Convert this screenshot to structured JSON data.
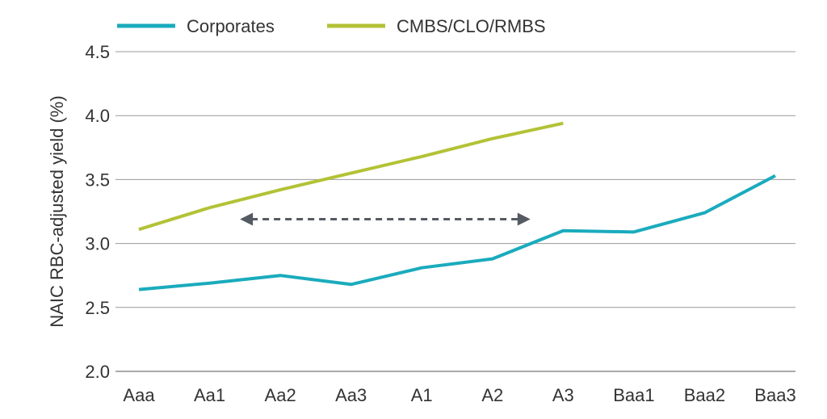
{
  "chart_data": {
    "type": "line",
    "title": "",
    "xlabel": "",
    "ylabel": "NAIC RBC-adjusted yield (%)",
    "ylim": [
      2.0,
      4.5
    ],
    "yticks": [
      "2.0",
      "2.5",
      "3.0",
      "3.5",
      "4.0",
      "4.5"
    ],
    "grid": true,
    "legend": "top-left",
    "categories": [
      "Aaa",
      "Aa1",
      "Aa2",
      "Aa3",
      "A1",
      "A2",
      "A3",
      "Baa1",
      "Baa2",
      "Baa3"
    ],
    "series": [
      {
        "name": "Corporates",
        "color": "#1aabbd",
        "values": [
          2.64,
          2.69,
          2.75,
          2.68,
          2.81,
          2.88,
          3.1,
          3.09,
          3.24,
          3.53
        ]
      },
      {
        "name": "CMBS/CLO/RMBS",
        "color": "#b3c236",
        "values": [
          3.11,
          3.28,
          3.42,
          3.55,
          3.68,
          3.82,
          3.94,
          null,
          null,
          null
        ]
      }
    ],
    "annotation": {
      "type": "double-arrow-dashed",
      "color": "#555a63",
      "from_category": "Aa2",
      "to_category": "A2",
      "y": 3.19
    }
  }
}
